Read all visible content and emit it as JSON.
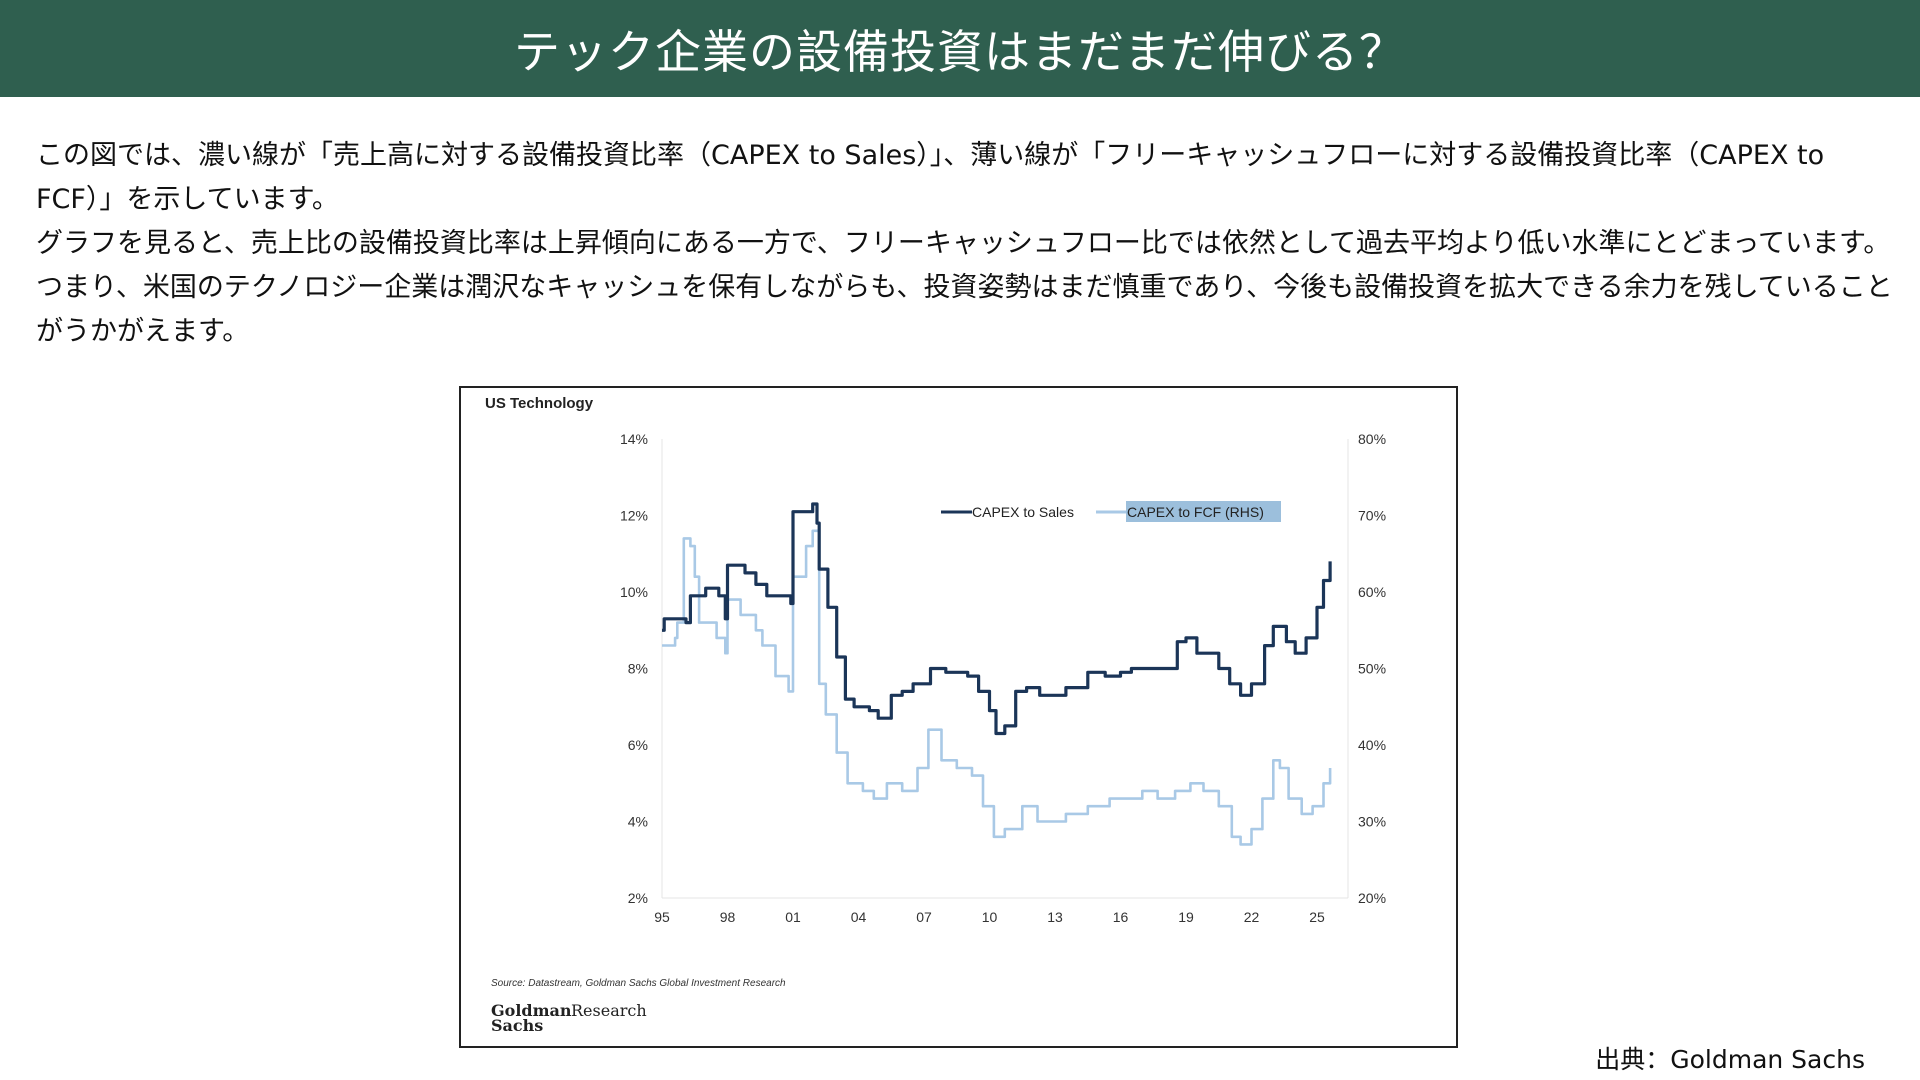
{
  "header": {
    "title": "テック企業の設備投資はまだまだ伸びる？"
  },
  "body": {
    "paragraphs": [
      "この図では、濃い線が「売上高に対する設備投資比率（CAPEX to Sales）」、薄い線が「フリーキャッシュフローに対する設備投資比率（CAPEX to FCF）」を示しています。",
      "グラフを見ると、売上比の設備投資比率は上昇傾向にある一方で、フリーキャッシュフロー比では依然として過去平均より低い水準にとどまっています。つまり、米国のテクノロジー企業は潤沢なキャッシュを保有しながらも、投資姿勢はまだ慎重であり、今後も設備投資を拡大できる余力を残していることがうかがえます。"
    ]
  },
  "credit": "出典：Goldman Sachs",
  "chart_data": {
    "type": "line",
    "title": "US Technology",
    "source": "Source: Datastream, Goldman Sachs Global Investment Research",
    "logo": "Goldman Sachs Research",
    "x_ticks": [
      "95",
      "98",
      "01",
      "04",
      "07",
      "10",
      "13",
      "16",
      "19",
      "22",
      "25"
    ],
    "x_tick_values": [
      1995,
      1998,
      2001,
      2004,
      2007,
      2010,
      2013,
      2016,
      2019,
      2022,
      2025
    ],
    "xlim": [
      1995,
      2026.5
    ],
    "y_left": {
      "ticks": [
        "2%",
        "4%",
        "6%",
        "8%",
        "10%",
        "12%",
        "14%"
      ],
      "lim": [
        2,
        14
      ]
    },
    "y_right": {
      "ticks": [
        "20%",
        "30%",
        "40%",
        "50%",
        "60%",
        "70%",
        "80%"
      ],
      "lim": [
        20,
        80
      ]
    },
    "legend": {
      "placement": "top-right"
    },
    "series": [
      {
        "name": "CAPEX to Sales",
        "axis": "left",
        "color": "#1b3558",
        "x": [
          1995,
          1995.1,
          1996,
          1996.1,
          1996.3,
          1996.8,
          1997,
          1997.6,
          1997.9,
          1998,
          1998.8,
          1999.3,
          1999.8,
          2000.5,
          2000.9,
          2001,
          2001.5,
          2001.9,
          2002.1,
          2002.2,
          2002.6,
          2003,
          2003.4,
          2003.8,
          2004.5,
          2004.9,
          2005.5,
          2006,
          2006.5,
          2007.3,
          2008,
          2009,
          2009.5,
          2010,
          2010.3,
          2010.7,
          2011.2,
          2011.7,
          2012.3,
          2013,
          2013.5,
          2014.5,
          2015.3,
          2016,
          2016.5,
          2017.5,
          2018.2,
          2018.6,
          2019,
          2019.5,
          2020.5,
          2021,
          2021.5,
          2022,
          2022.6,
          2023,
          2023.6,
          2024,
          2024.5,
          2025,
          2025.3,
          2025.6
        ],
        "values": [
          9.0,
          9.3,
          9.3,
          9.2,
          9.9,
          9.9,
          10.1,
          9.9,
          9.3,
          10.7,
          10.5,
          10.2,
          9.9,
          9.9,
          9.7,
          12.1,
          12.1,
          12.3,
          11.8,
          10.6,
          9.6,
          8.3,
          7.2,
          7.0,
          6.9,
          6.7,
          7.3,
          7.4,
          7.6,
          8.0,
          7.9,
          7.8,
          7.4,
          6.9,
          6.3,
          6.5,
          7.4,
          7.5,
          7.3,
          7.3,
          7.5,
          7.9,
          7.8,
          7.9,
          8.0,
          8.0,
          8.0,
          8.7,
          8.8,
          8.4,
          8.0,
          7.6,
          7.3,
          7.6,
          8.6,
          9.1,
          8.7,
          8.4,
          8.8,
          9.6,
          10.3,
          10.8
        ]
      },
      {
        "name": "CAPEX to FCF (RHS)",
        "axis": "right",
        "color": "#a9c9e6",
        "x": [
          1995,
          1995.6,
          1995.7,
          1996,
          1996.3,
          1996.5,
          1996.7,
          1997.5,
          1997.9,
          1998,
          1998.6,
          1999.3,
          1999.6,
          2000.2,
          2000.8,
          2000.9,
          2001,
          2001.6,
          2001.9,
          2002.2,
          2002.5,
          2003,
          2003.5,
          2004.2,
          2004.7,
          2005.3,
          2006,
          2006.7,
          2007.2,
          2007.8,
          2008.5,
          2009.2,
          2009.7,
          2010.2,
          2010.7,
          2011.5,
          2012.2,
          2013,
          2013.5,
          2014.5,
          2015.5,
          2016,
          2017,
          2017.7,
          2018.5,
          2019.2,
          2019.8,
          2020.5,
          2021.1,
          2021.5,
          2022,
          2022.5,
          2023,
          2023.3,
          2023.7,
          2024.3,
          2024.8,
          2025.3,
          2025.6
        ],
        "values": [
          53,
          54,
          56,
          67,
          66,
          62,
          56,
          54,
          52,
          59,
          57,
          55,
          53,
          49,
          47,
          47,
          62,
          66,
          68,
          48,
          44,
          39,
          35,
          34,
          33,
          35,
          34,
          37,
          42,
          38,
          37,
          36,
          32,
          28,
          29,
          32,
          30,
          30,
          31,
          32,
          33,
          33,
          34,
          33,
          34,
          35,
          34,
          32,
          28,
          27,
          29,
          33,
          38,
          37,
          33,
          31,
          32,
          35,
          37
        ]
      }
    ]
  }
}
